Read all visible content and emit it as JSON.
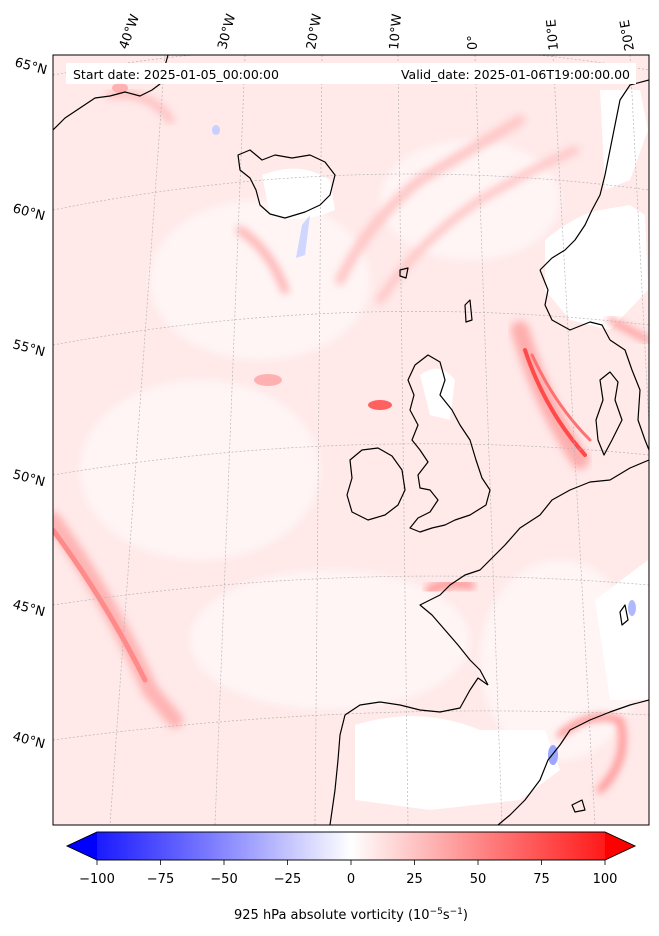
{
  "header": {
    "start_date": "Start date: 2025-01-05_00:00:00",
    "valid_date": "Valid_date: 2025-01-06T19:00:00.00"
  },
  "longitude_labels": [
    "40°W",
    "30°W",
    "20°W",
    "10°W",
    "0°",
    "10°E",
    "20°E"
  ],
  "latitude_labels": [
    "65°N",
    "60°N",
    "55°N",
    "50°N",
    "45°N",
    "40°N"
  ],
  "colorbar": {
    "min": -100,
    "max": 100,
    "ticks": [
      "−100",
      "−75",
      "−50",
      "−25",
      "0",
      "25",
      "50",
      "75",
      "100"
    ],
    "label": "925 hPa absolute vorticity (10",
    "label_exp1": "−5",
    "label_mid": "s",
    "label_exp2": "−1",
    "label_end": ")",
    "colors": {
      "negative": "#0000ff",
      "zero": "#ffffff",
      "positive": "#ff0000"
    }
  },
  "colors": {
    "background_field": "#ffe6e6",
    "coastline": "#000000",
    "land_low": "#ffffff"
  }
}
